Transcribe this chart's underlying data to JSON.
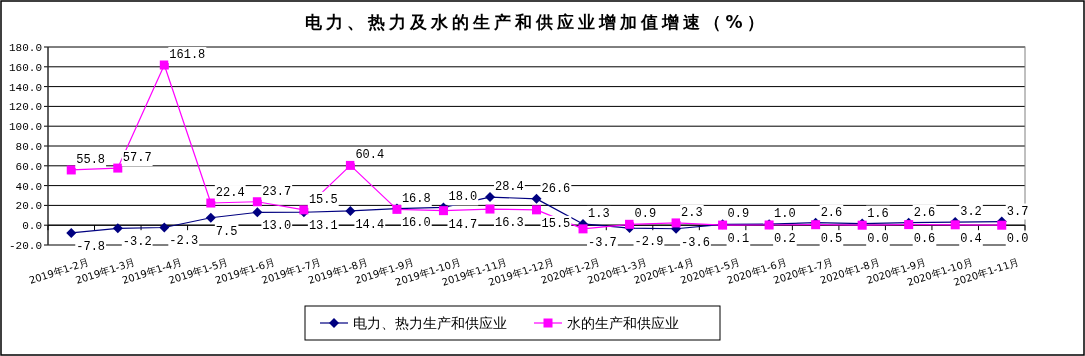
{
  "chart_data": {
    "type": "line",
    "title": "电力、热力及水的生产和供应业增加值增速（%）",
    "categories": [
      "2019年1-2月",
      "2019年1-3月",
      "2019年1-4月",
      "2019年1-5月",
      "2019年1-6月",
      "2019年1-7月",
      "2019年1-8月",
      "2019年1-9月",
      "2019年1-10月",
      "2019年1-11月",
      "2019年1-12月",
      "2020年1-2月",
      "2020年1-3月",
      "2020年1-4月",
      "2020年1-5月",
      "2020年1-6月",
      "2020年1-7月",
      "2020年1-8月",
      "2020年1-9月",
      "2020年1-10月",
      "2020年1-11月"
    ],
    "series": [
      {
        "name": "电力、热力生产和供应业",
        "color": "#000080",
        "marker": "diamond",
        "values": [
          -7.8,
          -3.2,
          -2.3,
          7.5,
          13.0,
          13.1,
          14.4,
          16.8,
          18.0,
          28.4,
          26.6,
          1.3,
          -2.9,
          -3.6,
          0.9,
          1.0,
          2.6,
          1.6,
          2.6,
          3.2,
          3.7
        ],
        "value_labels": [
          "-7.8",
          "-3.2",
          "-2.3",
          "7.5",
          "13.0",
          "13.1",
          "14.4",
          "16.8",
          "18.0",
          "28.4",
          "26.6",
          "1.3",
          "-2.9",
          "-3.6",
          "0.9",
          "1.0",
          "2.6",
          "1.6",
          "2.6",
          "3.2",
          "3.7"
        ]
      },
      {
        "name": "水的生产和供应业",
        "color": "#ff00ff",
        "marker": "square",
        "values": [
          55.8,
          57.7,
          161.8,
          22.4,
          23.7,
          15.5,
          60.4,
          16.0,
          14.7,
          16.3,
          15.5,
          -3.7,
          0.9,
          2.3,
          0.1,
          0.2,
          0.5,
          0.0,
          0.6,
          0.4,
          0.0
        ],
        "value_labels": [
          "55.8",
          "57.7",
          "161.8",
          "22.4",
          "23.7",
          "15.5",
          "60.4",
          "16.0",
          "14.7",
          "16.3",
          "15.5",
          "-3.7",
          "0.9",
          "2.3",
          "0.1",
          "0.2",
          "0.5",
          "0.0",
          "0.6",
          "0.4",
          "0.0"
        ]
      }
    ],
    "ylim": [
      -20,
      180
    ],
    "yticks": [
      {
        "value": -20,
        "label": "-20.0"
      },
      {
        "value": 0,
        "label": "0.0"
      },
      {
        "value": 20,
        "label": "20.0"
      },
      {
        "value": 40,
        "label": "40.0"
      },
      {
        "value": 60,
        "label": "60.0"
      },
      {
        "value": 80,
        "label": "80.0"
      },
      {
        "value": 100,
        "label": "100.0"
      },
      {
        "value": 120,
        "label": "120.0"
      },
      {
        "value": 140,
        "label": "140.0"
      },
      {
        "value": 160,
        "label": "160.0"
      },
      {
        "value": 180,
        "label": "180.0"
      }
    ],
    "grid": "y",
    "legend": "bottom",
    "line_style": "solid"
  }
}
